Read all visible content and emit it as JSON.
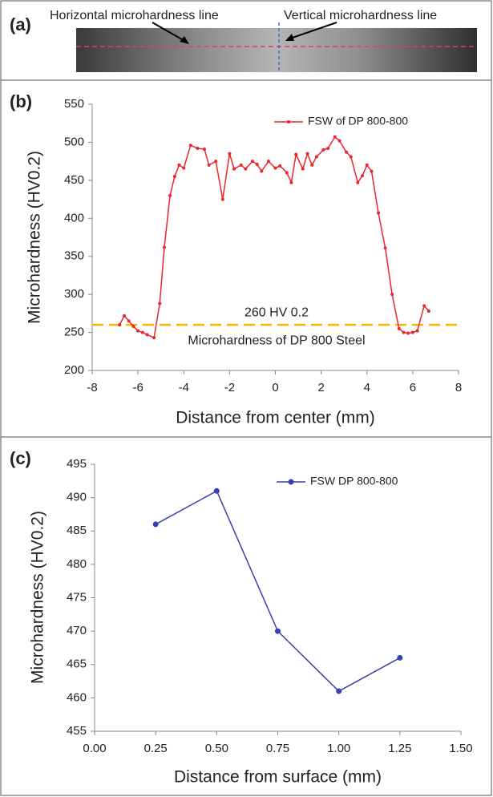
{
  "image_panel": {
    "label": "(a)",
    "annotations": [
      "Horizontal microhardness line",
      "Vertical microhardness line"
    ]
  },
  "chart_data": [
    {
      "type": "line",
      "panel_label": "(b)",
      "x_label": "Distance from center  (mm)",
      "y_label": "Microhardness (HV0.2)",
      "x": [
        -6.8,
        -6.6,
        -6.4,
        -6.2,
        -6.0,
        -5.8,
        -5.6,
        -5.3,
        -5.05,
        -4.85,
        -4.6,
        -4.4,
        -4.2,
        -4.0,
        -3.7,
        -3.4,
        -3.1,
        -2.9,
        -2.6,
        -2.3,
        -2.0,
        -1.8,
        -1.5,
        -1.3,
        -1.0,
        -0.8,
        -0.6,
        -0.3,
        0.0,
        0.2,
        0.5,
        0.7,
        0.9,
        1.2,
        1.4,
        1.6,
        1.8,
        2.1,
        2.3,
        2.6,
        2.8,
        3.1,
        3.3,
        3.6,
        3.8,
        4.0,
        4.2,
        4.5,
        4.8,
        5.1,
        5.4,
        5.6,
        5.8,
        6.0,
        6.2,
        6.5,
        6.7
      ],
      "series": [
        {
          "name": "FSW of DP 800-800",
          "color": "#e8262b",
          "values": [
            260,
            272,
            265,
            258,
            252,
            250,
            247,
            243,
            288,
            362,
            430,
            455,
            470,
            466,
            496,
            492,
            491,
            470,
            475,
            425,
            485,
            465,
            470,
            465,
            475,
            471,
            462,
            475,
            466,
            469,
            460,
            447,
            484,
            465,
            485,
            470,
            481,
            490,
            492,
            507,
            502,
            487,
            481,
            447,
            456,
            470,
            462,
            407,
            361,
            300,
            255,
            250,
            249,
            250,
            252,
            285,
            278
          ]
        }
      ],
      "xlim": [
        -8,
        8
      ],
      "xticks": [
        -8,
        -6,
        -4,
        -2,
        0,
        2,
        4,
        6,
        8
      ],
      "ylim": [
        200,
        550
      ],
      "yticks": [
        200,
        250,
        300,
        350,
        400,
        450,
        500,
        550
      ],
      "legend": "upper right",
      "reference_line": {
        "value": 260,
        "color": "#f5b800",
        "labels": [
          "260 HV 0.2",
          "Microhardness of DP 800 Steel"
        ]
      }
    },
    {
      "type": "line",
      "panel_label": "(c)",
      "x_label": "Distance from surface (mm)",
      "y_label": "Microhardness (HV0.2)",
      "x": [
        0.25,
        0.5,
        0.75,
        1.0,
        1.25
      ],
      "series": [
        {
          "name": "FSW DP 800-800",
          "color": "#3a3fb0",
          "values": [
            486,
            491,
            470,
            461,
            466
          ]
        }
      ],
      "xlim": [
        0,
        1.5
      ],
      "xticks": [
        {
          "value": 0,
          "label": "0.00"
        },
        0.25,
        {
          "value": 0.5,
          "label": "0.50"
        },
        0.75,
        {
          "value": 1,
          "label": "1.00"
        },
        1.25,
        {
          "value": 1.5,
          "label": "1.50"
        }
      ],
      "ylim": [
        455,
        495
      ],
      "yticks": [
        455,
        460,
        465,
        470,
        475,
        480,
        485,
        490,
        495
      ],
      "legend": "upper right"
    }
  ]
}
